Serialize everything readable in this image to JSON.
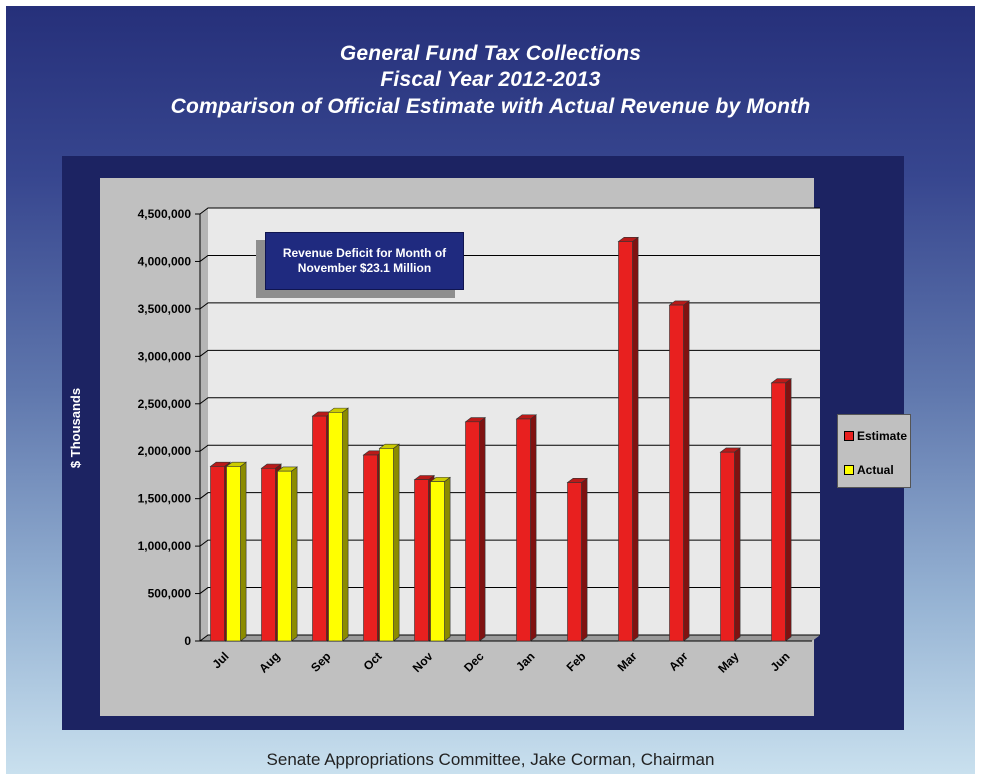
{
  "title_lines": [
    "General Fund Tax Collections",
    "Fiscal Year 2012-2013",
    "Comparison of Official Estimate with Actual Revenue by Month"
  ],
  "annotation": "Revenue Deficit for Month of November $23.1 Million",
  "footer": "Senate Appropriations Committee, Jake Corman, Chairman",
  "colors": {
    "estimate": "#e8201f",
    "actual": "#ffff00",
    "panel": "#1c2362",
    "plot": "#c0c0c0"
  },
  "chart_data": {
    "type": "bar",
    "ylabel": "$ Thousands",
    "ylim": [
      0,
      4500000
    ],
    "yticks": [
      0,
      500000,
      1000000,
      1500000,
      2000000,
      2500000,
      3000000,
      3500000,
      4000000,
      4500000
    ],
    "ytick_labels": [
      "0",
      "500,000",
      "1,000,000",
      "1,500,000",
      "2,000,000",
      "2,500,000",
      "3,000,000",
      "3,500,000",
      "4,000,000",
      "4,500,000"
    ],
    "categories": [
      "Jul",
      "Aug",
      "Sep",
      "Oct",
      "Nov",
      "Dec",
      "Jan",
      "Feb",
      "Mar",
      "Apr",
      "May",
      "Jun"
    ],
    "series": [
      {
        "name": "Estimate",
        "values": [
          1840000,
          1820000,
          2370000,
          1960000,
          1700000,
          2310000,
          2340000,
          1670000,
          4210000,
          3540000,
          1990000,
          2720000
        ]
      },
      {
        "name": "Actual",
        "values": [
          1840000,
          1790000,
          2410000,
          2030000,
          1680000,
          null,
          null,
          null,
          null,
          null,
          null,
          null
        ]
      }
    ],
    "grid": true,
    "legend": "right"
  }
}
